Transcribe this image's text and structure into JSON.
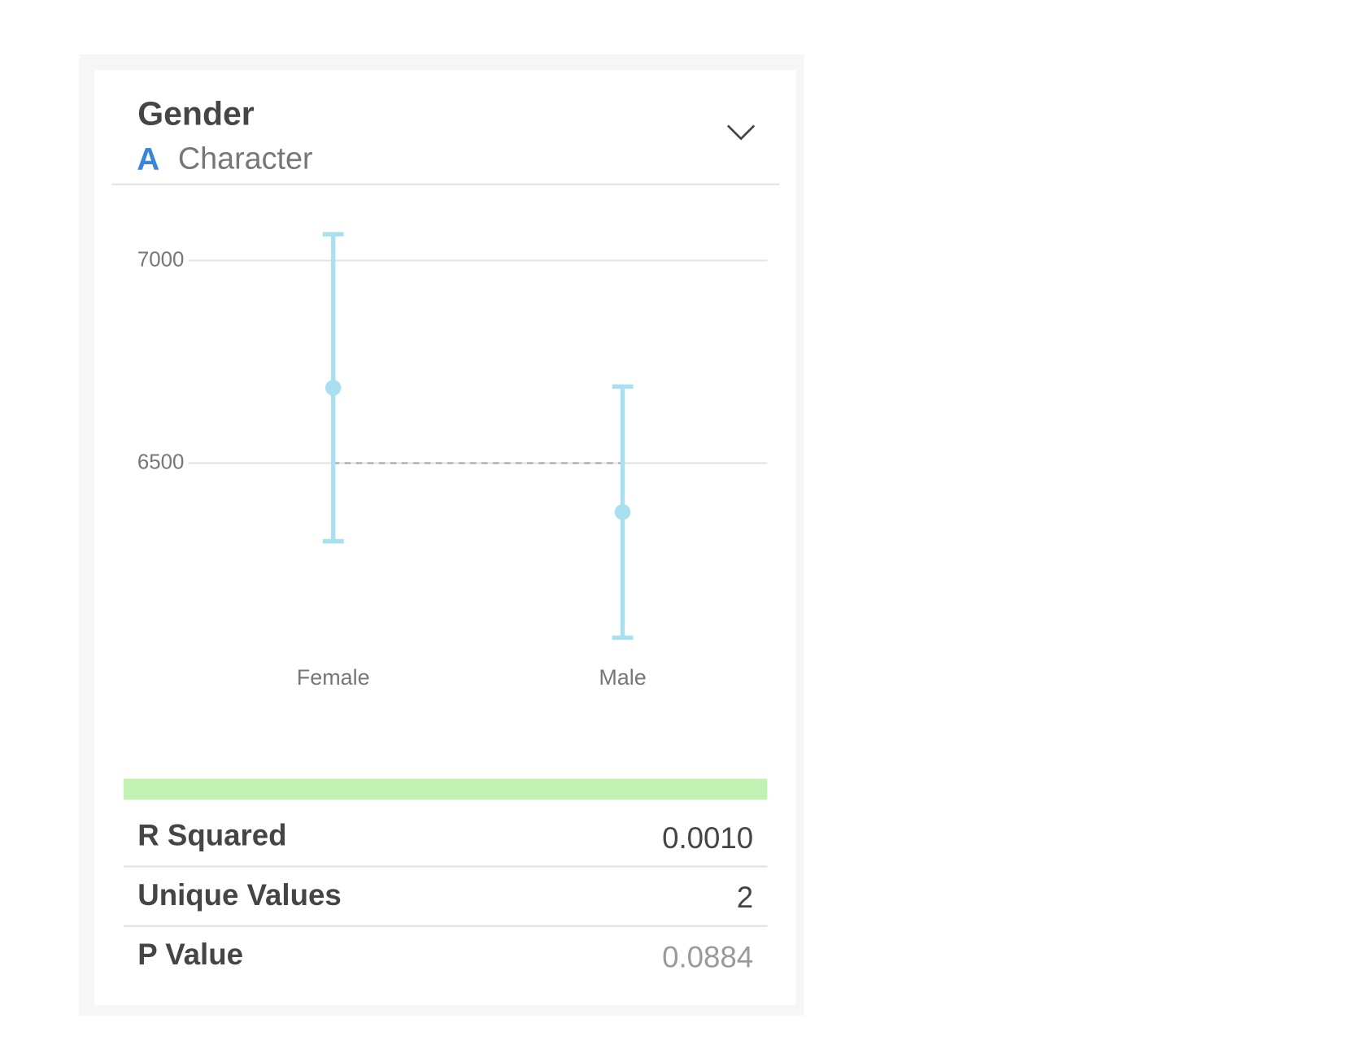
{
  "header": {
    "title": "Gender",
    "type_icon": "A",
    "type_label": "Character"
  },
  "chart_data": {
    "type": "errorbar",
    "categories": [
      "Female",
      "Male"
    ],
    "values": [
      6686,
      6379
    ],
    "errors": [
      379,
      310
    ],
    "color": "#a8e0f0",
    "reference_line": 6500,
    "ylim": [
      6030,
      7125
    ],
    "yticks": [
      6500,
      7000
    ],
    "grid": true
  },
  "stats": {
    "rows": [
      [
        "R Squared",
        "0.0010"
      ],
      [
        "Unique Values",
        "2"
      ],
      [
        "P Value",
        "0.0884"
      ]
    ]
  }
}
